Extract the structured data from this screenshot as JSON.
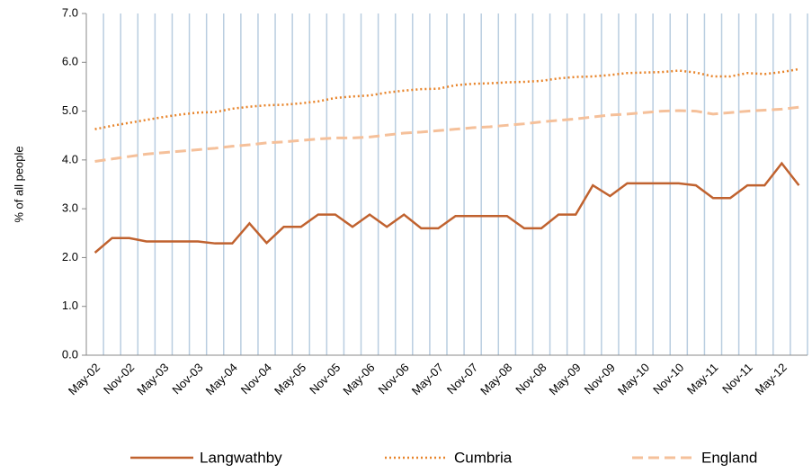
{
  "chart_data": {
    "type": "line",
    "y_label": "% of all people",
    "categories": [
      "May-02",
      null,
      "Nov-02",
      null,
      "May-03",
      null,
      "Nov-03",
      null,
      "May-04",
      null,
      "Nov-04",
      null,
      "May-05",
      null,
      "Nov-05",
      null,
      "May-06",
      null,
      "Nov-06",
      null,
      "May-07",
      null,
      "Nov-07",
      null,
      "May-08",
      null,
      "Nov-08",
      null,
      "May-09",
      null,
      "Nov-09",
      null,
      "May-10",
      null,
      "Nov-10",
      null,
      "May-11",
      null,
      "Nov-11",
      null,
      "May-12",
      null
    ],
    "series": [
      {
        "name": "Langwathby",
        "color": "#c0622f",
        "style": "solid",
        "values": [
          2.1,
          2.4,
          2.4,
          2.33,
          2.33,
          2.33,
          2.33,
          2.29,
          2.29,
          2.7,
          2.3,
          2.63,
          2.63,
          2.88,
          2.88,
          2.63,
          2.88,
          2.63,
          2.88,
          2.6,
          2.6,
          2.85,
          2.85,
          2.85,
          2.85,
          2.6,
          2.6,
          2.88,
          2.88,
          3.48,
          3.26,
          3.52,
          3.52,
          3.52,
          3.52,
          3.48,
          3.22,
          3.22,
          3.48,
          3.48,
          3.93,
          3.48
        ]
      },
      {
        "name": "Cumbria",
        "color": "#e8842a",
        "style": "dotted",
        "values": [
          4.63,
          4.7,
          4.76,
          4.82,
          4.88,
          4.93,
          4.97,
          4.98,
          5.05,
          5.09,
          5.12,
          5.13,
          5.16,
          5.2,
          5.27,
          5.3,
          5.32,
          5.38,
          5.42,
          5.45,
          5.46,
          5.53,
          5.56,
          5.57,
          5.59,
          5.6,
          5.62,
          5.67,
          5.7,
          5.71,
          5.74,
          5.78,
          5.79,
          5.8,
          5.83,
          5.79,
          5.71,
          5.71,
          5.78,
          5.76,
          5.8,
          5.86
        ]
      },
      {
        "name": "England",
        "color": "#f5c09a",
        "style": "dashed",
        "values": [
          3.97,
          4.02,
          4.07,
          4.12,
          4.15,
          4.18,
          4.21,
          4.24,
          4.28,
          4.31,
          4.35,
          4.37,
          4.4,
          4.43,
          4.45,
          4.45,
          4.47,
          4.51,
          4.55,
          4.57,
          4.6,
          4.63,
          4.66,
          4.68,
          4.71,
          4.74,
          4.78,
          4.81,
          4.84,
          4.88,
          4.92,
          4.94,
          4.97,
          5.0,
          5.01,
          5.0,
          4.94,
          4.97,
          5.0,
          5.02,
          5.04,
          5.08
        ]
      }
    ],
    "ylim": [
      0,
      7
    ],
    "yticks": [
      {
        "value": 0,
        "label": "0.0"
      },
      {
        "value": 1,
        "label": "1.0"
      },
      {
        "value": 2,
        "label": "2.0"
      },
      {
        "value": 3,
        "label": "3.0"
      },
      {
        "value": 4,
        "label": "4.0"
      },
      {
        "value": 5,
        "label": "5.0"
      },
      {
        "value": 6,
        "label": "6.0"
      },
      {
        "value": 7,
        "label": "7.0"
      }
    ],
    "grid": true,
    "legend": "bottom"
  }
}
